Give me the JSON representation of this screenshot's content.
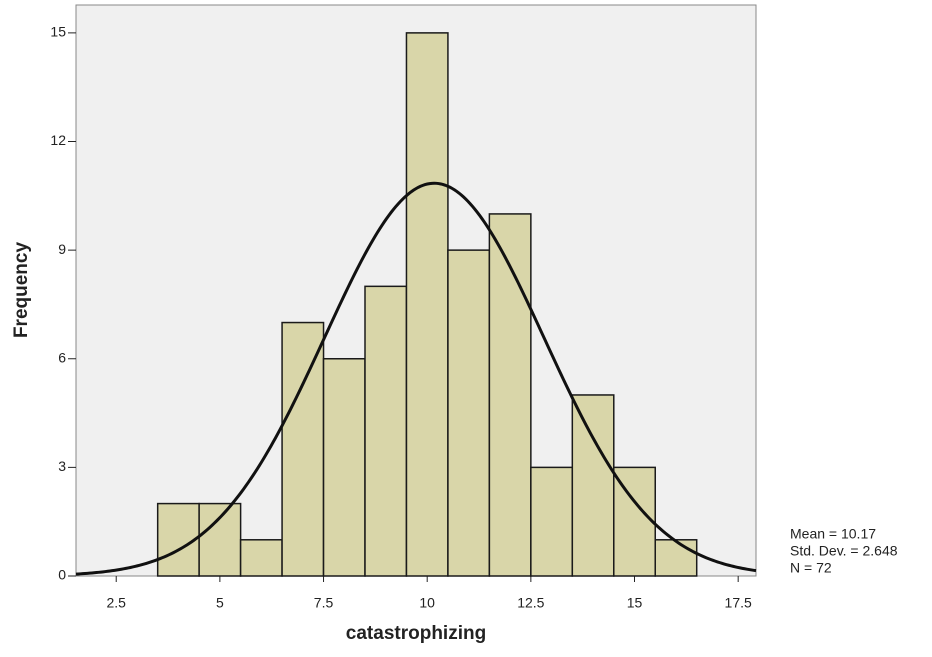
{
  "chart_data": {
    "type": "histogram",
    "x_label": "catastrophizing",
    "y_label": "Frequency",
    "bins": [
      3.5,
      4.5,
      5.5,
      6.5,
      7.5,
      8.5,
      9.5,
      10.5,
      11.5,
      12.5,
      13.5,
      14.5,
      15.5,
      16.5
    ],
    "values": [
      2,
      2,
      1,
      7,
      6,
      8,
      15,
      9,
      10,
      3,
      5,
      3,
      1
    ],
    "color": "#d9d6a9",
    "edge_color": "#1a1a1a",
    "background": "#f0f0f0",
    "xlim": [
      1.53,
      17.93
    ],
    "ylim": [
      0,
      15.77
    ],
    "xticks": [
      2.5,
      5,
      7.5,
      10,
      12.5,
      15,
      17.5
    ],
    "yticks": [
      0,
      3,
      6,
      9,
      12,
      15
    ],
    "normal_curve": {
      "mean": 10.17,
      "std_dev": 2.648,
      "n": 72,
      "color": "#111111"
    },
    "annotations": [
      "Mean = 10.17",
      "Std. Dev. = 2.648",
      "N = 72"
    ]
  }
}
